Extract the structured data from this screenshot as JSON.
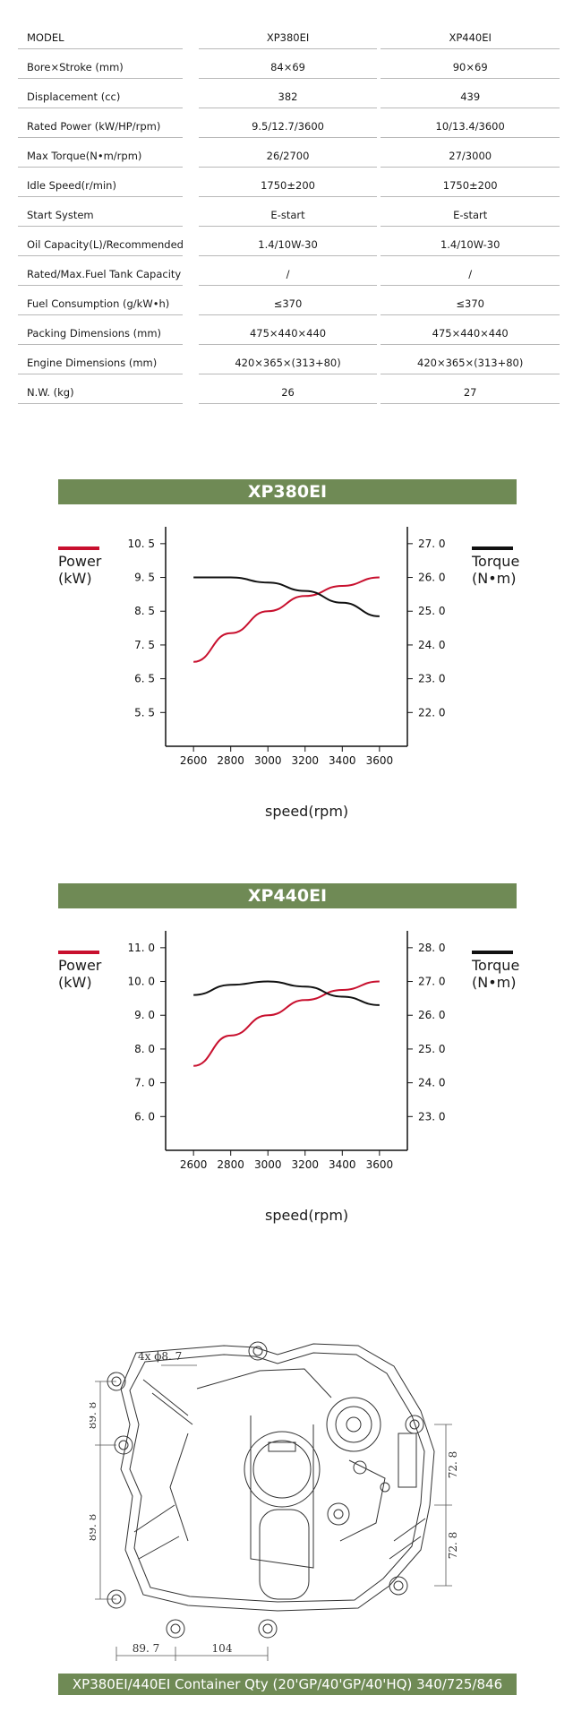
{
  "specs": {
    "headers": [
      "MODEL",
      "XP380EI",
      "XP440EI"
    ],
    "rows": [
      [
        "Bore×Stroke (mm)",
        "84×69",
        "90×69"
      ],
      [
        "Displacement (cc)",
        "382",
        "439"
      ],
      [
        "Rated Power (kW/HP/rpm)",
        "9.5/12.7/3600",
        "10/13.4/3600"
      ],
      [
        "Max Torque(N•m/rpm)",
        "26/2700",
        "27/3000"
      ],
      [
        "Idle Speed(r/min)",
        "1750±200",
        "1750±200"
      ],
      [
        "Start System",
        "E-start",
        "E-start"
      ],
      [
        "Oil Capacity(L)/Recommended",
        "1.4/10W-30",
        "1.4/10W-30"
      ],
      [
        "Rated/Max.Fuel Tank Capacity (L)",
        "/",
        "/"
      ],
      [
        "Fuel Consumption (g/kW•h)",
        "≤370",
        "≤370"
      ],
      [
        "Packing Dimensions (mm)",
        "475×440×440",
        "475×440×440"
      ],
      [
        "Engine Dimensions (mm)",
        "420×365×(313+80)",
        "420×365×(313+80)"
      ],
      [
        "N.W. (kg)",
        "26",
        "27"
      ]
    ]
  },
  "charts": {
    "xp380": {
      "banner": "XP380EI"
    },
    "xp440": {
      "banner": "XP440EI"
    },
    "legend_power": [
      "Power",
      "(kW)"
    ],
    "legend_torque": [
      "Torque",
      "(N•m)"
    ],
    "xlabel": "speed(rpm)"
  },
  "chart_data": [
    {
      "type": "line",
      "title": "XP380EI",
      "x": [
        2600,
        2800,
        3000,
        3200,
        3400,
        3600
      ],
      "xlabel": "speed(rpm)",
      "y_left_ticks": [
        "10. 5",
        "9. 5",
        "8. 5",
        "7. 5",
        "6. 5",
        "5. 5"
      ],
      "y_right_ticks": [
        "27. 0",
        "26. 0",
        "25. 0",
        "24. 0",
        "23. 0",
        "22. 0"
      ],
      "ylim_left": [
        4.5,
        11.0
      ],
      "ylim_right": [
        21.0,
        27.5
      ],
      "series": [
        {
          "name": "Power (kW)",
          "axis": "left",
          "color": "#c8102e",
          "values": [
            7.0,
            7.85,
            8.5,
            8.95,
            9.25,
            9.5
          ]
        },
        {
          "name": "Torque (N•m)",
          "axis": "right",
          "color": "#111111",
          "values": [
            26.0,
            26.0,
            25.85,
            25.6,
            25.25,
            24.85
          ]
        }
      ]
    },
    {
      "type": "line",
      "title": "XP440EI",
      "x": [
        2600,
        2800,
        3000,
        3200,
        3400,
        3600
      ],
      "xlabel": "speed(rpm)",
      "y_left_ticks": [
        "11. 0",
        "10. 0",
        "9. 0",
        "8. 0",
        "7. 0",
        "6. 0"
      ],
      "y_right_ticks": [
        "28. 0",
        "27. 0",
        "26. 0",
        "25. 0",
        "24. 0",
        "23. 0"
      ],
      "ylim_left": [
        5.0,
        11.5
      ],
      "ylim_right": [
        22.0,
        28.5
      ],
      "series": [
        {
          "name": "Power (kW)",
          "axis": "left",
          "color": "#c8102e",
          "values": [
            7.5,
            8.4,
            9.0,
            9.45,
            9.75,
            10.0
          ]
        },
        {
          "name": "Torque (N•m)",
          "axis": "right",
          "color": "#111111",
          "values": [
            26.6,
            26.9,
            27.0,
            26.85,
            26.55,
            26.3
          ]
        }
      ]
    }
  ],
  "drawing": {
    "hole_note": "4x ϕ8. 7",
    "dims": {
      "left_top": "89. 8",
      "left_bottom": "89. 8",
      "right_top": "72. 8",
      "right_bottom": "72. 8",
      "bottom_left": "89. 7",
      "bottom_right": "104"
    }
  },
  "footer": {
    "text": "XP380EI/440EI Container Qty (20'GP/40'GP/40'HQ) 340/725/846"
  }
}
